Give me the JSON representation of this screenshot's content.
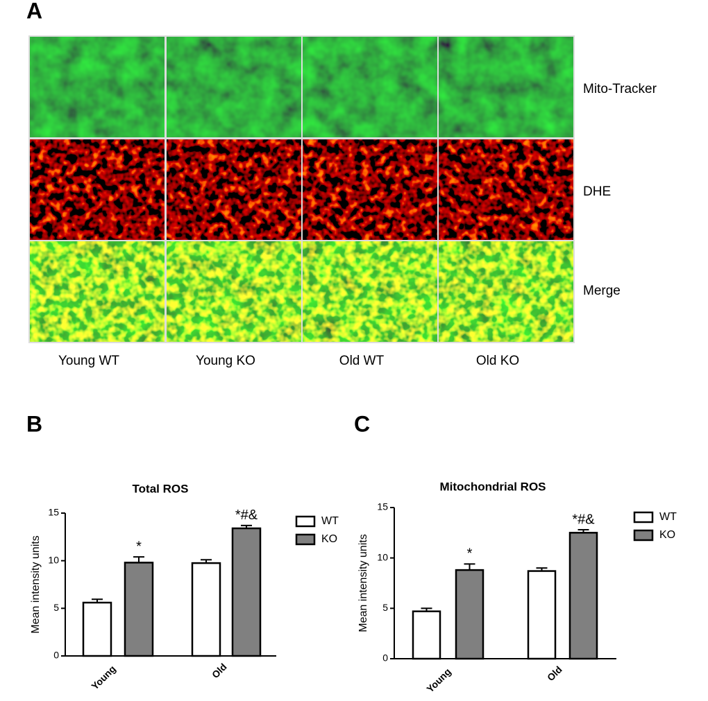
{
  "panels": [
    "A",
    "B",
    "C"
  ],
  "images": {
    "rows": [
      "Mito-Tracker",
      "DHE",
      "Merge"
    ],
    "columns": [
      "Young WT",
      "Young KO",
      "Old WT",
      "Old KO"
    ]
  },
  "chart_data": [
    {
      "type": "bar",
      "title": "Total ROS",
      "y_label": "Mean intensity units",
      "categories": [
        "Young",
        "Old"
      ],
      "series": [
        {
          "name": "WT",
          "color": "#ffffff",
          "values": [
            5.6,
            9.75
          ],
          "errors": [
            0.35,
            0.35
          ]
        },
        {
          "name": "KO",
          "color": "#808080",
          "values": [
            9.8,
            13.4
          ],
          "errors": [
            0.6,
            0.3
          ]
        }
      ],
      "annotations": [
        "*",
        "*#&"
      ],
      "ylim": [
        0,
        15
      ],
      "yticks": [
        0,
        5,
        10,
        15
      ],
      "legend": "upper right"
    },
    {
      "type": "bar",
      "title": "Mitochondrial ROS",
      "y_label": "Mean intensity units",
      "categories": [
        "Young",
        "Old"
      ],
      "series": [
        {
          "name": "WT",
          "color": "#ffffff",
          "values": [
            4.7,
            8.7
          ],
          "errors": [
            0.3,
            0.3
          ]
        },
        {
          "name": "KO",
          "color": "#808080",
          "values": [
            8.8,
            12.5
          ],
          "errors": [
            0.6,
            0.3
          ]
        }
      ],
      "annotations": [
        "*",
        "*#&"
      ],
      "ylim": [
        0,
        15
      ],
      "yticks": [
        0,
        5,
        10,
        15
      ],
      "legend": "upper right"
    }
  ]
}
